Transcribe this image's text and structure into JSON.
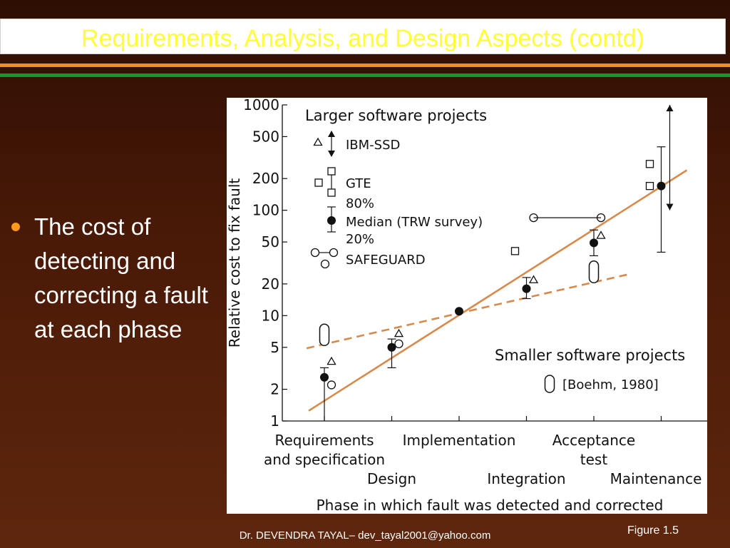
{
  "slide": {
    "title": "Requirements, Analysis, and Design Aspects (contd)",
    "bullet": "The cost of detecting and correcting a fault at each phase",
    "figure_label": "Figure 1.5",
    "footer": "Dr. DEVENDRA TAYAL– dev_tayal2001@yahoo.com"
  },
  "colors": {
    "title_text": "#ffff33",
    "bullet_dot": "#ff9a1a",
    "rule_orange": "#f28c1e",
    "rule_green": "#0f9a2c",
    "trend_line": "#d9894a"
  },
  "chart_data": {
    "type": "scatter",
    "y_scale": "log",
    "ylim": [
      1,
      1000
    ],
    "ylabel": "Relative cost to fix fault",
    "xlabel": "Phase in which fault was detected and corrected",
    "y_ticks": [
      {
        "value": 1,
        "label": "1"
      },
      {
        "value": 2,
        "label": "2"
      },
      {
        "value": 5,
        "label": "5"
      },
      {
        "value": 10,
        "label": "10"
      },
      {
        "value": 20,
        "label": "20"
      },
      {
        "value": 50,
        "label": "50"
      },
      {
        "value": 100,
        "label": "100"
      },
      {
        "value": 200,
        "label": "200"
      },
      {
        "value": 500,
        "label": "500"
      },
      {
        "value": 1000,
        "label": "1000"
      }
    ],
    "phases": [
      {
        "lines": [
          "Requirements",
          "and specification"
        ],
        "x": 0,
        "row": 0
      },
      {
        "lines": [
          "Design"
        ],
        "x": 1,
        "row": 1
      },
      {
        "lines": [
          "Implementation"
        ],
        "x": 2,
        "row": 0
      },
      {
        "lines": [
          "Integration"
        ],
        "x": 3,
        "row": 1
      },
      {
        "lines": [
          "Acceptance",
          "test"
        ],
        "x": 4,
        "row": 0
      },
      {
        "lines": [
          "Maintenance"
        ],
        "x": 5,
        "row": 1
      }
    ],
    "larger_projects": {
      "heading": "Larger software projects",
      "legend": {
        "ibm_ssd": "IBM-SSD",
        "gte": "GTE",
        "p80": "80%",
        "median": "Median (TRW survey)",
        "p20": "20%",
        "safeguard": "SAFEGUARD"
      },
      "median": [
        {
          "x": 0,
          "y": 2.6,
          "low": 1,
          "high": 3.2
        },
        {
          "x": 1,
          "y": 5,
          "low": 3.2,
          "high": 6
        },
        {
          "x": 2,
          "y": 11
        },
        {
          "x": 3,
          "y": 18,
          "low": 14.5,
          "high": 23
        },
        {
          "x": 4,
          "y": 49,
          "low": 37,
          "high": 65
        },
        {
          "x": 5,
          "y": 170,
          "low": 40,
          "high": 400
        }
      ],
      "ibm_ssd": [
        {
          "x": 0,
          "y": 3.7
        },
        {
          "x": 1,
          "y": 6.8
        },
        {
          "x": 3,
          "y": 22
        },
        {
          "x": 4,
          "y": 58
        }
      ],
      "ibm_ssd_range": {
        "x": 5,
        "low": 100,
        "high": 1000
      },
      "gte": [
        {
          "x": 3,
          "y": 41
        },
        {
          "x": 5,
          "y": 170
        },
        {
          "x": 5,
          "y": 275
        }
      ],
      "safeguard": [
        {
          "x": 0,
          "y": 2.2
        },
        {
          "x": 1,
          "y": 5.4
        },
        {
          "x": 3,
          "y": 85
        },
        {
          "x": 4,
          "y": 85
        }
      ],
      "trend": {
        "from": {
          "x": 0,
          "y": 1.25
        },
        "to": {
          "x": 5,
          "y": 240
        }
      }
    },
    "smaller_projects": {
      "heading": "Smaller software projects",
      "source": "[Boehm, 1980]",
      "ranges": [
        {
          "x": 0,
          "low": 5.2,
          "high": 8.3
        },
        {
          "x": 4,
          "low": 20.5,
          "high": 33
        }
      ],
      "trend": {
        "from": {
          "x": 0,
          "y": 4.9
        },
        "to": {
          "x": 4.5,
          "y": 25
        }
      }
    }
  }
}
